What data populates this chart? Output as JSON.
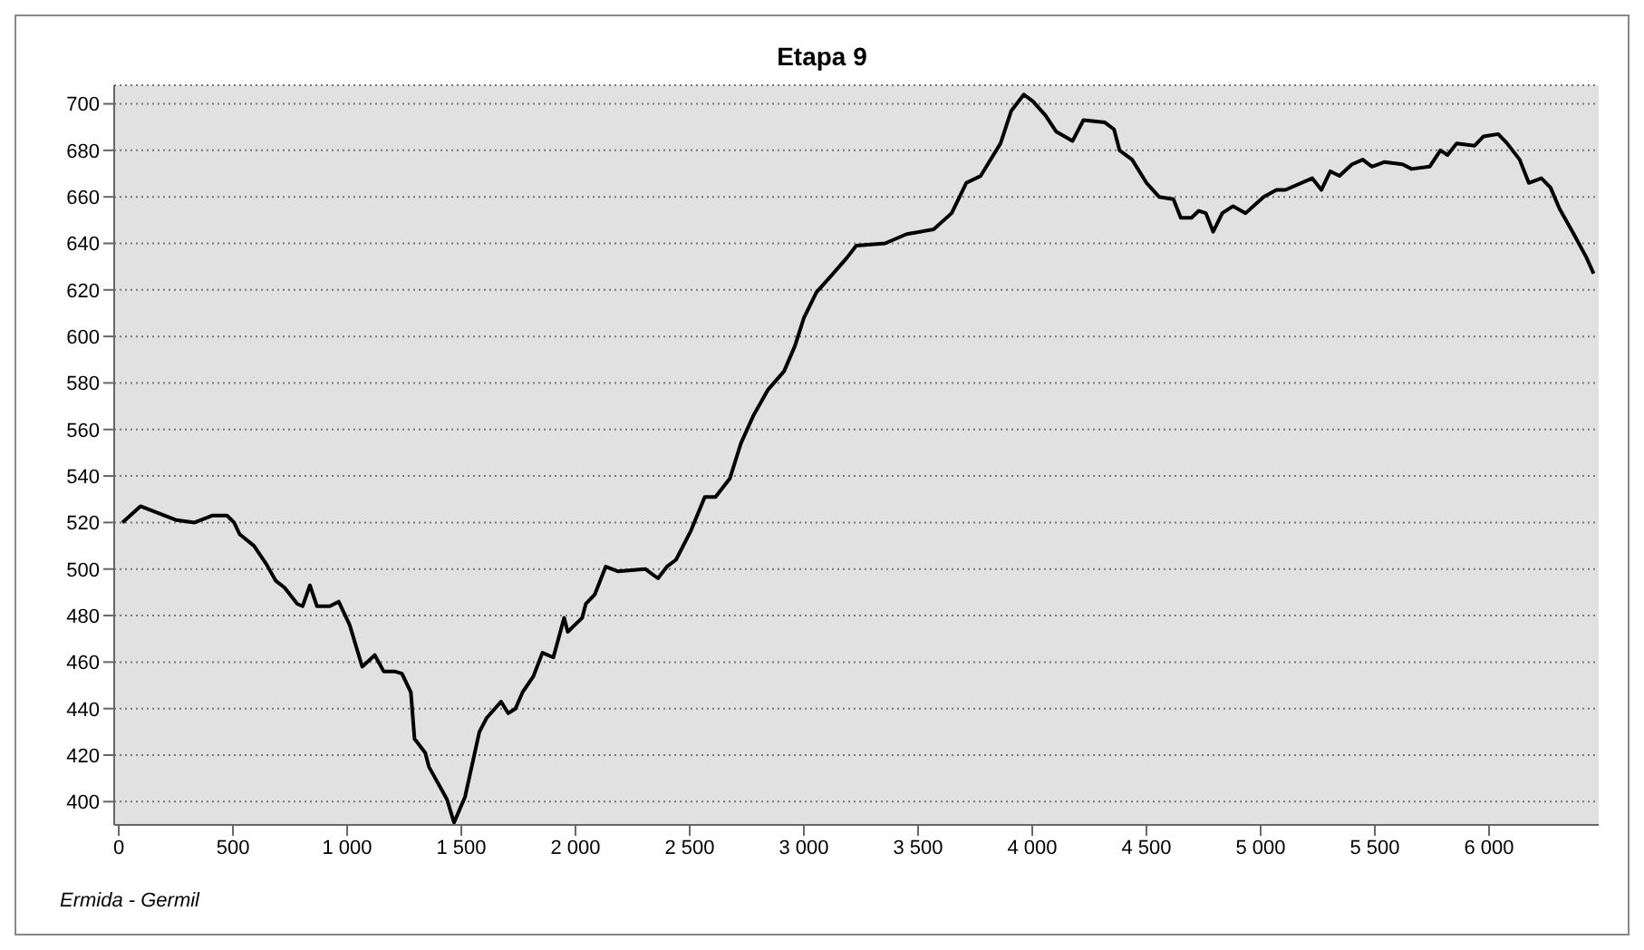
{
  "chart_data": {
    "type": "line",
    "title": "Etapa 9",
    "annotations": [
      "Ermida - Germil"
    ],
    "x": [
      16,
      95,
      174,
      253,
      332,
      411,
      474,
      505,
      529,
      592,
      647,
      687,
      726,
      782,
      805,
      837,
      868,
      924,
      963,
      1011,
      1066,
      1121,
      1160,
      1208,
      1240,
      1279,
      1295,
      1342,
      1358,
      1437,
      1468,
      1516,
      1579,
      1611,
      1674,
      1705,
      1737,
      1768,
      1816,
      1855,
      1903,
      1950,
      1966,
      2029,
      2045,
      2084,
      2132,
      2187,
      2305,
      2361,
      2400,
      2440,
      2503,
      2566,
      2613,
      2676,
      2724,
      2779,
      2842,
      2913,
      2961,
      3000,
      3055,
      3119,
      3190,
      3229,
      3355,
      3450,
      3568,
      3647,
      3711,
      3774,
      3861,
      3908,
      3963,
      4003,
      4058,
      4105,
      4176,
      4224,
      4318,
      4358,
      4382,
      4437,
      4500,
      4555,
      4618,
      4650,
      4697,
      4729,
      4760,
      4792,
      4832,
      4879,
      4934,
      5013,
      5069,
      5108,
      5226,
      5266,
      5305,
      5345,
      5400,
      5447,
      5487,
      5542,
      5621,
      5661,
      5740,
      5787,
      5818,
      5858,
      5937,
      5976,
      6040,
      6079,
      6134,
      6174,
      6229,
      6269,
      6308,
      6371,
      6426,
      6458
    ],
    "series": [
      {
        "color": "#000000",
        "values": [
          520,
          527,
          524,
          521,
          520,
          523,
          523,
          520,
          515,
          510,
          502,
          495,
          492,
          485,
          484,
          493,
          484,
          484,
          486,
          476,
          458,
          463,
          456,
          456,
          455,
          447,
          427,
          421,
          415,
          401,
          391,
          402,
          430,
          436,
          443,
          438,
          440,
          447,
          454,
          464,
          462,
          479,
          473,
          479,
          485,
          489,
          501,
          499,
          500,
          496,
          501,
          504,
          516,
          531,
          531,
          539,
          554,
          566,
          577,
          585,
          596,
          608,
          619,
          626,
          634,
          639,
          640,
          644,
          646,
          653,
          666,
          669,
          683,
          697,
          704,
          701,
          695,
          688,
          684,
          693,
          692,
          689,
          680,
          676,
          666,
          660,
          659,
          651,
          651,
          654,
          653,
          645,
          653,
          656,
          653,
          660,
          663,
          663,
          668,
          663,
          671,
          669,
          674,
          676,
          673,
          675,
          674,
          672,
          673,
          680,
          678,
          683,
          682,
          686,
          687,
          683,
          676,
          666,
          668,
          664,
          655,
          644,
          634,
          627
        ]
      }
    ],
    "xlim": [
      -20,
      6480
    ],
    "xticks": [
      0,
      500,
      {
        "value": 1000,
        "label": "1 000"
      },
      {
        "value": 1500,
        "label": "1 500"
      },
      {
        "value": 2000,
        "label": "2 000"
      },
      {
        "value": 2500,
        "label": "2 500"
      },
      {
        "value": 3000,
        "label": "3 000"
      },
      {
        "value": 3500,
        "label": "3 500"
      },
      {
        "value": 4000,
        "label": "4 000"
      },
      {
        "value": 4500,
        "label": "4 500"
      },
      {
        "value": 5000,
        "label": "5 000"
      },
      {
        "value": 5500,
        "label": "5 500"
      },
      {
        "value": 6000,
        "label": "6 000"
      }
    ],
    "ylim": [
      390,
      708
    ],
    "yticks": [
      400,
      420,
      440,
      460,
      480,
      500,
      520,
      540,
      560,
      580,
      600,
      620,
      640,
      660,
      680,
      700
    ],
    "grid": "y",
    "marker": "none",
    "line_style": "solid"
  }
}
